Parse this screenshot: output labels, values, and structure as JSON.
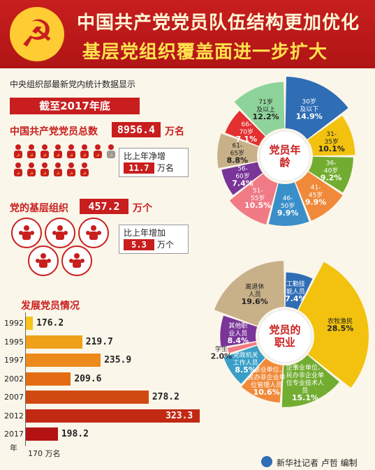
{
  "header": {
    "title_line1": "中国共产党党员队伍结构更加优化",
    "title_line2": "基层党组织覆盖面进一步扩大",
    "emblem_icon": "party-emblem-icon"
  },
  "intro": {
    "source": "中央组织部最新党内统计数据显示",
    "date_banner": "截至2017年底"
  },
  "members": {
    "label": "中国共产党党员总数",
    "value": "8956.4",
    "unit": "万名",
    "increase_label": "比上年净增",
    "increase_value": "11.7",
    "increase_unit": "万名"
  },
  "orgs": {
    "label": "党的基层组织",
    "value": "457.2",
    "unit": "万个",
    "increase_label": "比上年增加",
    "increase_value": "5.3",
    "increase_unit": "万个"
  },
  "colors": {
    "red": "#c81e1e",
    "gold": "#ffcc33",
    "cream": "#fbf6ea"
  },
  "footer": {
    "credit": "新华社记者 卢哲 编制"
  },
  "chart_data": [
    {
      "type": "bar",
      "title": "发展党员情况",
      "categories": [
        "1992",
        "1995",
        "1997",
        "2002",
        "2007",
        "2012",
        "2017"
      ],
      "values": [
        176.2,
        219.7,
        235.9,
        209.6,
        278.2,
        323.3,
        198.2
      ],
      "ylabel": "年",
      "xlabel": "170 万名",
      "xlim": [
        170,
        330
      ],
      "colors": [
        "#f6c21b",
        "#efa11b",
        "#ec8a1b",
        "#e46c14",
        "#d04a12",
        "#c12912",
        "#b31313"
      ]
    },
    {
      "type": "pie",
      "title": "党员年龄",
      "categories": [
        "30岁及以下",
        "31-35岁",
        "36-40岁",
        "41-45岁",
        "46-50岁",
        "51-55岁",
        "56-60岁",
        "61-65岁",
        "66-70岁",
        "71岁及以上"
      ],
      "values": [
        14.9,
        10.1,
        9.2,
        9.9,
        9.9,
        10.5,
        7.4,
        8.8,
        7.1,
        12.2
      ],
      "value_labels": [
        "14.9%",
        "10.1%",
        "9.2%",
        "9.9%",
        "9.9%",
        "10.5%",
        "7.4%",
        "8.8%",
        "7.1%",
        "12.2%"
      ],
      "colors": [
        "#2f6db5",
        "#f2c20e",
        "#72ad32",
        "#f08a3a",
        "#3a8fc8",
        "#f07a85",
        "#7a3598",
        "#c8b089",
        "#e33030",
        "#8ed39a"
      ]
    },
    {
      "type": "pie",
      "title": "党员的职业",
      "categories": [
        "工勤技能人员",
        "农牧渔民",
        "企事业单位、民办非企业单位专业技术人员",
        "企事业单位、民办非企业单位管理人员",
        "党政机关工作人员",
        "学生",
        "其他职业人员",
        "离退休人员"
      ],
      "values": [
        7.4,
        28.5,
        15.1,
        10.6,
        8.5,
        2.0,
        8.4,
        19.6
      ],
      "value_labels": [
        "7.4%",
        "28.5%",
        "15.1%",
        "10.6%",
        "8.5%",
        "2.0%",
        "8.4%",
        "19.6%"
      ],
      "colors": [
        "#2f6db5",
        "#f2c20e",
        "#72ad32",
        "#f08a3a",
        "#3a9fc8",
        "#f07a85",
        "#7a3598",
        "#c8b089"
      ]
    }
  ]
}
